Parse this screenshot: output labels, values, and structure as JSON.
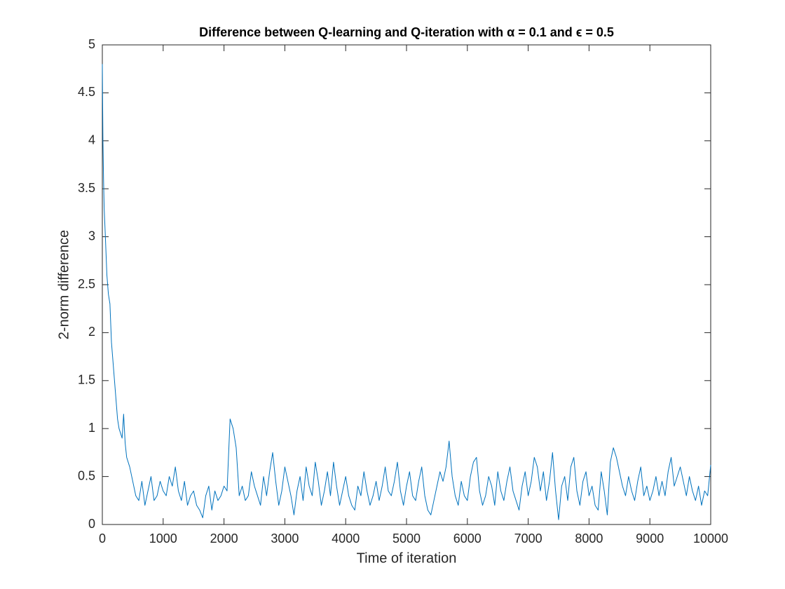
{
  "chart_data": {
    "type": "line",
    "title": "Difference between Q-learning and Q-iteration with α = 0.1 and ϵ = 0.5",
    "x_label": "Time of iteration",
    "y_label": "2-norm difference",
    "color": "#0072bd",
    "x": [
      0,
      10,
      20,
      30,
      50,
      75,
      100,
      125,
      150,
      175,
      200,
      225,
      250,
      275,
      300,
      325,
      350,
      375,
      400,
      450,
      500,
      550,
      600,
      650,
      700,
      750,
      800,
      850,
      900,
      950,
      1000,
      1050,
      1100,
      1150,
      1200,
      1250,
      1300,
      1350,
      1400,
      1450,
      1500,
      1550,
      1600,
      1650,
      1700,
      1750,
      1800,
      1850,
      1900,
      1950,
      2000,
      2050,
      2100,
      2150,
      2200,
      2250,
      2300,
      2350,
      2400,
      2450,
      2500,
      2550,
      2600,
      2650,
      2700,
      2750,
      2800,
      2850,
      2900,
      2950,
      3000,
      3050,
      3100,
      3150,
      3200,
      3250,
      3300,
      3350,
      3400,
      3450,
      3500,
      3550,
      3600,
      3650,
      3700,
      3750,
      3800,
      3850,
      3900,
      3950,
      4000,
      4050,
      4100,
      4150,
      4200,
      4250,
      4300,
      4350,
      4400,
      4450,
      4500,
      4550,
      4600,
      4650,
      4700,
      4750,
      4800,
      4850,
      4900,
      4950,
      5000,
      5050,
      5100,
      5150,
      5200,
      5250,
      5300,
      5350,
      5400,
      5450,
      5500,
      5550,
      5600,
      5650,
      5700,
      5750,
      5800,
      5850,
      5900,
      5950,
      6000,
      6050,
      6100,
      6150,
      6200,
      6250,
      6300,
      6350,
      6400,
      6450,
      6500,
      6550,
      6600,
      6650,
      6700,
      6750,
      6800,
      6850,
      6900,
      6950,
      7000,
      7050,
      7100,
      7150,
      7200,
      7250,
      7300,
      7350,
      7400,
      7450,
      7500,
      7550,
      7600,
      7650,
      7700,
      7750,
      7800,
      7850,
      7900,
      7950,
      8000,
      8050,
      8100,
      8150,
      8200,
      8250,
      8300,
      8350,
      8400,
      8450,
      8500,
      8550,
      8600,
      8650,
      8700,
      8750,
      8800,
      8850,
      8900,
      8950,
      9000,
      9050,
      9100,
      9150,
      9200,
      9250,
      9300,
      9350,
      9400,
      9450,
      9500,
      9550,
      9600,
      9650,
      9700,
      9750,
      9800,
      9850,
      9900,
      9950,
      10000
    ],
    "values": [
      4.8,
      4.0,
      3.6,
      3.3,
      3.0,
      2.6,
      2.4,
      2.3,
      1.9,
      1.7,
      1.5,
      1.3,
      1.1,
      1.0,
      0.95,
      0.9,
      1.15,
      0.85,
      0.7,
      0.6,
      0.45,
      0.3,
      0.25,
      0.45,
      0.2,
      0.35,
      0.5,
      0.25,
      0.3,
      0.45,
      0.35,
      0.3,
      0.5,
      0.4,
      0.6,
      0.35,
      0.25,
      0.45,
      0.2,
      0.3,
      0.35,
      0.2,
      0.15,
      0.07,
      0.3,
      0.4,
      0.15,
      0.35,
      0.25,
      0.3,
      0.4,
      0.35,
      1.1,
      1.0,
      0.8,
      0.3,
      0.4,
      0.25,
      0.3,
      0.55,
      0.4,
      0.3,
      0.2,
      0.5,
      0.3,
      0.55,
      0.75,
      0.45,
      0.2,
      0.35,
      0.6,
      0.45,
      0.3,
      0.1,
      0.35,
      0.5,
      0.25,
      0.6,
      0.4,
      0.3,
      0.65,
      0.45,
      0.2,
      0.35,
      0.55,
      0.3,
      0.65,
      0.4,
      0.2,
      0.35,
      0.5,
      0.3,
      0.2,
      0.15,
      0.4,
      0.3,
      0.55,
      0.35,
      0.2,
      0.3,
      0.45,
      0.25,
      0.4,
      0.6,
      0.35,
      0.3,
      0.45,
      0.65,
      0.35,
      0.2,
      0.4,
      0.55,
      0.3,
      0.25,
      0.45,
      0.6,
      0.3,
      0.15,
      0.1,
      0.25,
      0.4,
      0.55,
      0.45,
      0.6,
      0.87,
      0.5,
      0.3,
      0.2,
      0.45,
      0.3,
      0.25,
      0.5,
      0.65,
      0.7,
      0.35,
      0.2,
      0.3,
      0.5,
      0.4,
      0.2,
      0.55,
      0.35,
      0.25,
      0.45,
      0.6,
      0.35,
      0.25,
      0.15,
      0.4,
      0.55,
      0.3,
      0.45,
      0.7,
      0.6,
      0.35,
      0.55,
      0.25,
      0.45,
      0.75,
      0.35,
      0.05,
      0.4,
      0.5,
      0.25,
      0.6,
      0.7,
      0.35,
      0.2,
      0.45,
      0.55,
      0.3,
      0.4,
      0.2,
      0.15,
      0.55,
      0.35,
      0.1,
      0.65,
      0.8,
      0.7,
      0.55,
      0.4,
      0.3,
      0.5,
      0.35,
      0.25,
      0.45,
      0.6,
      0.3,
      0.4,
      0.25,
      0.35,
      0.5,
      0.3,
      0.45,
      0.3,
      0.55,
      0.7,
      0.4,
      0.5,
      0.6,
      0.45,
      0.3,
      0.5,
      0.35,
      0.25,
      0.4,
      0.2,
      0.35,
      0.3,
      0.62
    ],
    "xlim": [
      0,
      10000
    ],
    "xticks": [
      0,
      1000,
      2000,
      3000,
      4000,
      5000,
      6000,
      7000,
      8000,
      9000,
      10000
    ],
    "ylim": [
      0,
      5
    ],
    "yticks": [
      0,
      0.5,
      1,
      1.5,
      2,
      2.5,
      3,
      3.5,
      4,
      4.5,
      5
    ]
  }
}
